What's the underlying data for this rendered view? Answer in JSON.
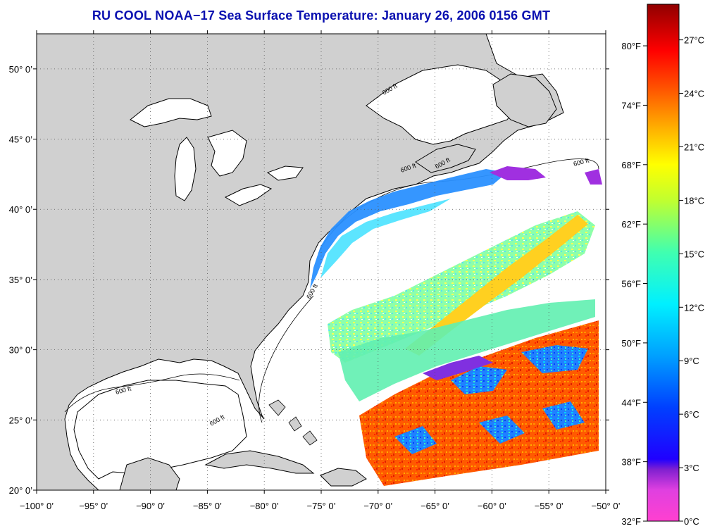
{
  "title": "RU COOL  NOAA−17  Sea Surface Temperature:  January 26, 2006 0156 GMT",
  "map": {
    "lon_range": [
      -100,
      -50
    ],
    "lat_range": [
      20,
      52.5
    ],
    "x_ticks": [
      {
        "value": -100,
        "label": "−100° 0’"
      },
      {
        "value": -95,
        "label": "−95° 0’"
      },
      {
        "value": -90,
        "label": "−90° 0’"
      },
      {
        "value": -85,
        "label": "−85° 0’"
      },
      {
        "value": -80,
        "label": "−80° 0’"
      },
      {
        "value": -75,
        "label": "−75° 0’"
      },
      {
        "value": -70,
        "label": "−70° 0’"
      },
      {
        "value": -65,
        "label": "−65° 0’"
      },
      {
        "value": -60,
        "label": "−60° 0’"
      },
      {
        "value": -55,
        "label": "−55° 0’"
      },
      {
        "value": -50,
        "label": "−50° 0’"
      }
    ],
    "y_ticks": [
      {
        "value": 20,
        "label": "20° 0’"
      },
      {
        "value": 25,
        "label": "25° 0’"
      },
      {
        "value": 30,
        "label": "30° 0’"
      },
      {
        "value": 35,
        "label": "35° 0’"
      },
      {
        "value": 40,
        "label": "40° 0’"
      },
      {
        "value": 45,
        "label": "45° 0’"
      },
      {
        "value": 50,
        "label": "50° 0’"
      }
    ],
    "grid": "dotted",
    "land_color": "#d0d0d0",
    "ocean_color": "#ffffff",
    "isobath_labels": [
      "600 ft",
      "600 ft",
      "600 ft",
      "600 ft",
      "600 ft",
      "600 ft",
      "600 ft"
    ]
  },
  "colorbar": {
    "fahrenheit_labels": [
      "80°F",
      "74°F",
      "68°F",
      "62°F",
      "56°F",
      "50°F",
      "44°F",
      "38°F",
      "32°F"
    ],
    "fahrenheit_values": [
      80,
      74,
      68,
      62,
      56,
      50,
      44,
      38,
      32
    ],
    "celsius_labels": [
      "27°C",
      "24°C",
      "21°C",
      "18°C",
      "15°C",
      "12°C",
      "9°C",
      "6°C",
      "3°C",
      "0°C"
    ],
    "celsius_values": [
      27,
      24,
      21,
      18,
      15,
      12,
      9,
      6,
      3,
      0
    ],
    "range_c": [
      0,
      29
    ],
    "colors": [
      "#ff40d0",
      "#c040e0",
      "#7020d0",
      "#0000ff",
      "#2080ff",
      "#00e8ff",
      "#40ffa0",
      "#c0ff20",
      "#ffff00",
      "#ffa000",
      "#ff4000",
      "#ff0000",
      "#a00000"
    ]
  }
}
